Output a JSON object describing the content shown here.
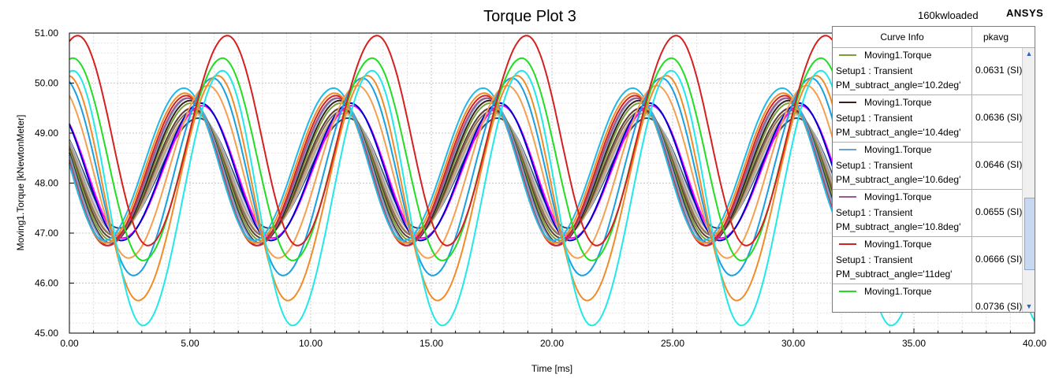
{
  "header": {
    "project": "160kwloaded",
    "brand": "ANSYS"
  },
  "chart_data": {
    "type": "line",
    "title": "Torque Plot 3",
    "xlabel": "Time [ms]",
    "ylabel": "Moving1.Torque [kNewtonMeter]",
    "xlim": [
      0,
      40
    ],
    "ylim": [
      45,
      51
    ],
    "xticks": [
      "0.00",
      "5.00",
      "10.00",
      "15.00",
      "20.00",
      "25.00",
      "30.00",
      "35.00",
      "40.00"
    ],
    "yticks": [
      "45.00",
      "46.00",
      "47.00",
      "48.00",
      "49.00",
      "50.00",
      "51.00"
    ],
    "grid": true,
    "legend_position": "top-right",
    "period_ms": 6.2,
    "series": [
      {
        "color": "#2d4a6e",
        "max": 49.3,
        "min": 47.1,
        "phase_ms": -0.05
      },
      {
        "color": "#d3d3d3",
        "max": 49.35,
        "min": 47.05,
        "phase_ms": -0.1
      },
      {
        "color": "#a0a0a0",
        "max": 49.4,
        "min": 47.0,
        "phase_ms": -0.15
      },
      {
        "color": "#c8a97e",
        "max": 49.4,
        "min": 46.95,
        "phase_ms": -0.2
      },
      {
        "color": "#8b7355",
        "max": 49.45,
        "min": 46.95,
        "phase_ms": -0.25
      },
      {
        "color": "#5c4033",
        "max": 49.5,
        "min": 46.9,
        "phase_ms": -0.3
      },
      {
        "color": "#ff00ff",
        "max": 49.55,
        "min": 46.9,
        "phase_ms": 0.1
      },
      {
        "color": "#0000cd",
        "max": 49.6,
        "min": 46.85,
        "phase_ms": 0.05
      },
      {
        "color": "#7b9e3a",
        "max": 49.6,
        "min": 46.85,
        "phase_ms": -0.35
      },
      {
        "color": "#3b1f1f",
        "max": 49.65,
        "min": 46.8,
        "phase_ms": -0.4
      },
      {
        "color": "#6fa0d0",
        "max": 49.7,
        "min": 46.8,
        "phase_ms": -0.45
      },
      {
        "color": "#9a5a8a",
        "max": 49.7,
        "min": 46.75,
        "phase_ms": -0.5
      },
      {
        "color": "#d42020",
        "max": 49.75,
        "min": 46.75,
        "phase_ms": -0.55
      },
      {
        "color": "#f08c28",
        "max": 49.8,
        "min": 46.8,
        "phase_ms": -0.6
      },
      {
        "color": "#22b8e8",
        "max": 49.9,
        "min": 46.85,
        "phase_ms": -0.65
      },
      {
        "color": "#f4a050",
        "max": 49.95,
        "min": 46.5,
        "phase_ms": 0.35
      },
      {
        "color": "#1aa0e0",
        "max": 50.1,
        "min": 46.15,
        "phase_ms": 0.55
      },
      {
        "color": "#22dd22",
        "max": 50.5,
        "min": 46.45,
        "phase_ms": 0.95
      },
      {
        "color": "#f08c28",
        "max": 50.15,
        "min": 45.65,
        "phase_ms": 0.75
      },
      {
        "color": "#d42020",
        "max": 50.95,
        "min": 46.75,
        "phase_ms": 1.15
      },
      {
        "color": "#22e8e8",
        "max": 50.25,
        "min": 45.15,
        "phase_ms": 0.95
      }
    ],
    "legend_columns": [
      "Curve Info",
      "pkavg"
    ],
    "legend_entries": [
      {
        "color": "#7b9e3a",
        "name": "Moving1.Torque",
        "setup": "Setup1 : Transient",
        "param": "PM_subtract_angle='10.2deg'",
        "pkavg": "0.0631 (SI)"
      },
      {
        "color": "#3b1f1f",
        "name": "Moving1.Torque",
        "setup": "Setup1 : Transient",
        "param": "PM_subtract_angle='10.4deg'",
        "pkavg": "0.0636 (SI)"
      },
      {
        "color": "#6fa0d0",
        "name": "Moving1.Torque",
        "setup": "Setup1 : Transient",
        "param": "PM_subtract_angle='10.6deg'",
        "pkavg": "0.0646 (SI)"
      },
      {
        "color": "#9a5a8a",
        "name": "Moving1.Torque",
        "setup": "Setup1 : Transient",
        "param": "PM_subtract_angle='10.8deg'",
        "pkavg": "0.0655 (SI)"
      },
      {
        "color": "#d42020",
        "name": "Moving1.Torque",
        "setup": "Setup1 : Transient",
        "param": "PM_subtract_angle='11deg'",
        "pkavg": "0.0666 (SI)"
      },
      {
        "color": "#22dd22",
        "name": "Moving1.Torque",
        "setup": "",
        "param": "",
        "pkavg": "0.0736 (SI)"
      }
    ],
    "scroll_up_icon": "chevron-up-icon",
    "scroll_down_icon": "chevron-down-icon"
  }
}
